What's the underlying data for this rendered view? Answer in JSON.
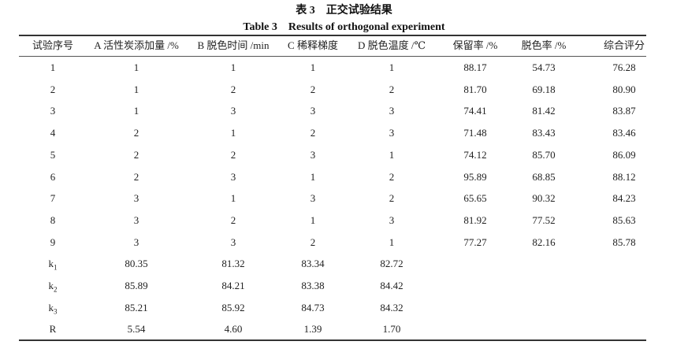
{
  "caption_cn": "表 3　正交试验结果",
  "caption_en": "Table 3　Results of orthogonal experiment",
  "headers": [
    "试验序号",
    "A 活性炭添加量 /%",
    "B 脱色时间 /min",
    "C 稀释梯度",
    "D 脱色温度 /℃",
    "保留率 /%",
    "脱色率 /%",
    "综合评分"
  ],
  "rows": [
    [
      "1",
      "1",
      "1",
      "1",
      "1",
      "88.17",
      "54.73",
      "76.28"
    ],
    [
      "2",
      "1",
      "2",
      "2",
      "2",
      "81.70",
      "69.18",
      "80.90"
    ],
    [
      "3",
      "1",
      "3",
      "3",
      "3",
      "74.41",
      "81.42",
      "83.87"
    ],
    [
      "4",
      "2",
      "1",
      "2",
      "3",
      "71.48",
      "83.43",
      "83.46"
    ],
    [
      "5",
      "2",
      "2",
      "3",
      "1",
      "74.12",
      "85.70",
      "86.09"
    ],
    [
      "6",
      "2",
      "3",
      "1",
      "2",
      "95.89",
      "68.85",
      "88.12"
    ],
    [
      "7",
      "3",
      "1",
      "3",
      "2",
      "65.65",
      "90.32",
      "84.23"
    ],
    [
      "8",
      "3",
      "2",
      "1",
      "3",
      "81.92",
      "77.52",
      "85.63"
    ],
    [
      "9",
      "3",
      "3",
      "2",
      "1",
      "77.27",
      "82.16",
      "85.78"
    ]
  ],
  "summary": [
    {
      "label": "k",
      "sub": "1",
      "values": [
        "80.35",
        "81.32",
        "83.34",
        "82.72"
      ]
    },
    {
      "label": "k",
      "sub": "2",
      "values": [
        "85.89",
        "84.21",
        "83.38",
        "84.42"
      ]
    },
    {
      "label": "k",
      "sub": "3",
      "values": [
        "85.21",
        "85.92",
        "84.73",
        "84.32"
      ]
    },
    {
      "label": "R",
      "sub": "",
      "values": [
        "5.54",
        "4.60",
        "1.39",
        "1.70"
      ]
    }
  ]
}
